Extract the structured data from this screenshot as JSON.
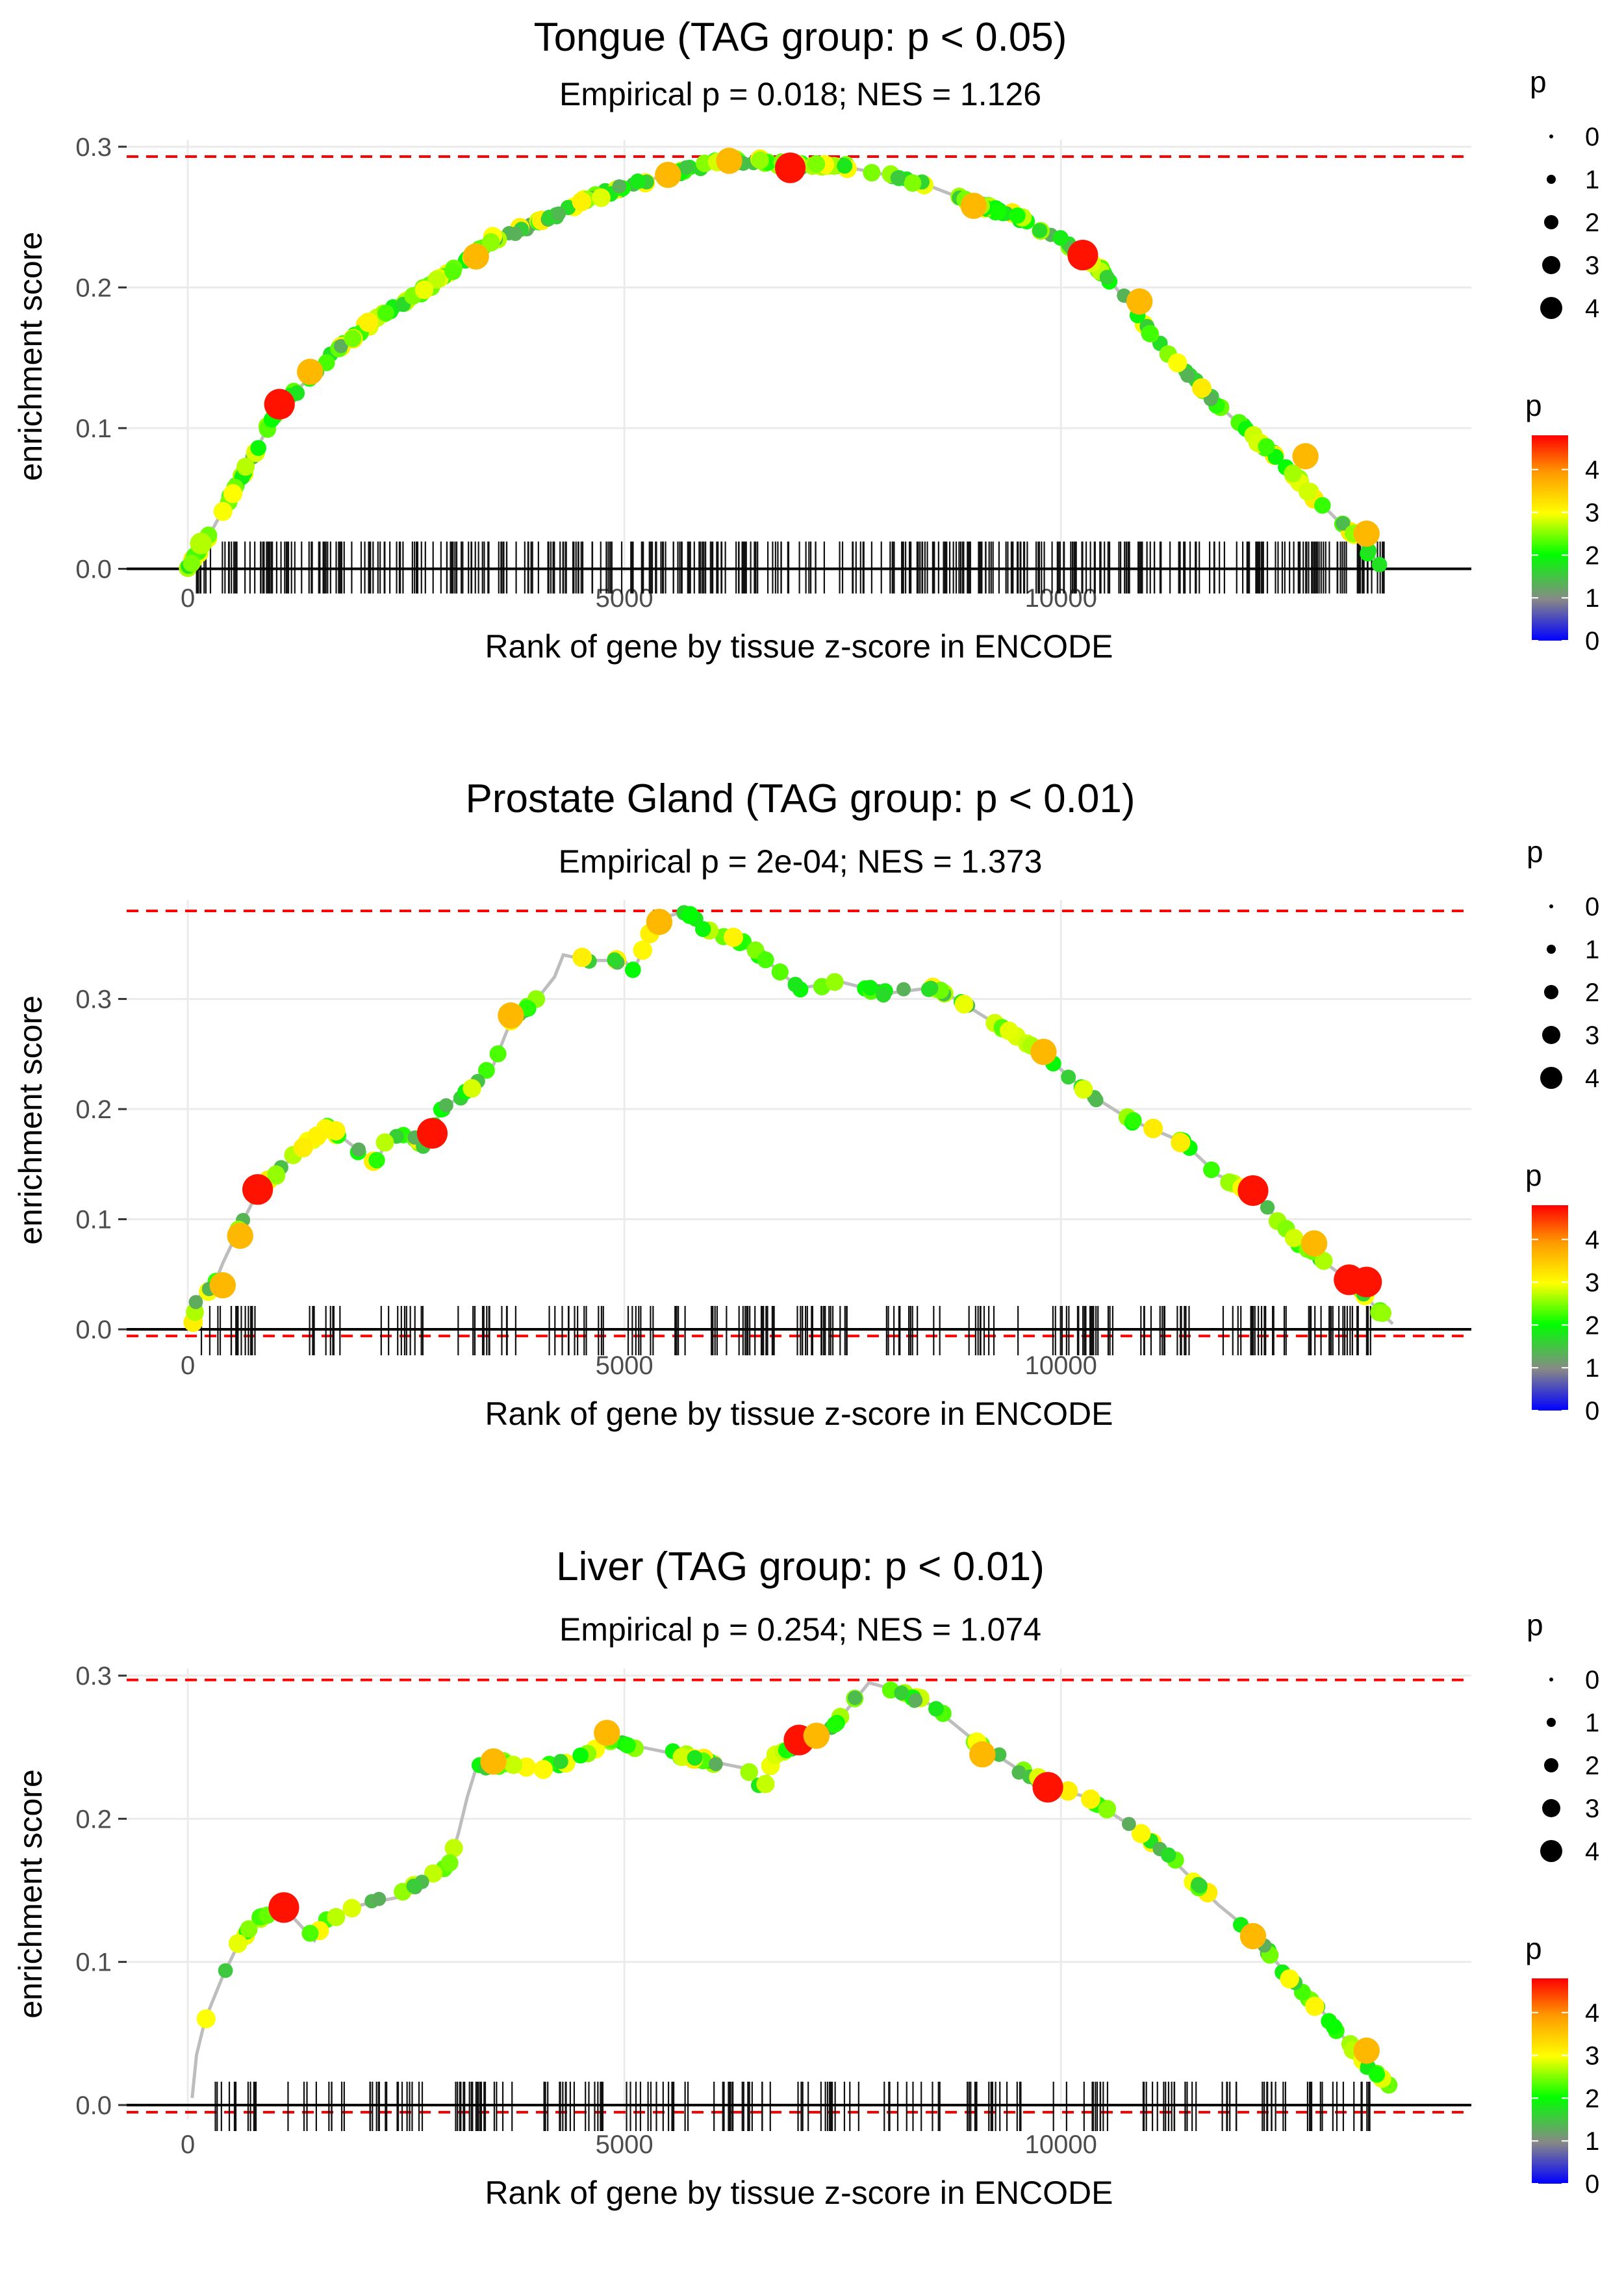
{
  "chart_data": [
    {
      "type": "line",
      "title": "Tongue (TAG group: p < 0.05)",
      "subtitle": "Empirical p = 0.018; NES = 1.126",
      "xlabel": "Rank of gene by tissue z-score in ENCODE",
      "ylabel": "enrichment score",
      "xlim": [
        -700,
        14700
      ],
      "ylim": [
        -0.003,
        0.305
      ],
      "xticks": [
        0,
        5000,
        10000
      ],
      "xtick_labels": [
        "0",
        "5000",
        "10000"
      ],
      "yticks": [
        0,
        0.1,
        0.2,
        0.3
      ],
      "ytick_labels": [
        "0.0",
        "0.1",
        "0.2",
        "0.3"
      ],
      "max_es": 0.293,
      "min_es": 0.0,
      "n_genes": 13700,
      "curve": [
        [
          0,
          0
        ],
        [
          300,
          0.03
        ],
        [
          700,
          0.075
        ],
        [
          1000,
          0.11
        ],
        [
          1300,
          0.13
        ],
        [
          1700,
          0.155
        ],
        [
          2100,
          0.175
        ],
        [
          2500,
          0.19
        ],
        [
          3000,
          0.21
        ],
        [
          3500,
          0.235
        ],
        [
          4000,
          0.245
        ],
        [
          4500,
          0.26
        ],
        [
          5000,
          0.272
        ],
        [
          5500,
          0.28
        ],
        [
          6000,
          0.288
        ],
        [
          6500,
          0.29
        ],
        [
          7000,
          0.287
        ],
        [
          7500,
          0.286
        ],
        [
          8000,
          0.28
        ],
        [
          8500,
          0.272
        ],
        [
          9000,
          0.26
        ],
        [
          9500,
          0.25
        ],
        [
          10000,
          0.235
        ],
        [
          10500,
          0.21
        ],
        [
          11000,
          0.17
        ],
        [
          11500,
          0.135
        ],
        [
          12000,
          0.105
        ],
        [
          12500,
          0.078
        ],
        [
          13000,
          0.045
        ],
        [
          13400,
          0.02
        ],
        [
          13700,
          0
        ]
      ],
      "highlights": [
        [
          150,
          0.018,
          2
        ],
        [
          1050,
          0.117,
          4
        ],
        [
          1400,
          0.14,
          3
        ],
        [
          3300,
          0.222,
          3
        ],
        [
          5500,
          0.28,
          3
        ],
        [
          6200,
          0.29,
          3
        ],
        [
          6900,
          0.285,
          4
        ],
        [
          9000,
          0.258,
          3
        ],
        [
          10250,
          0.223,
          4
        ],
        [
          10900,
          0.19,
          3
        ],
        [
          12800,
          0.08,
          3
        ],
        [
          13500,
          0.025,
          3
        ]
      ],
      "legend_size": {
        "title": "p",
        "labels": [
          "0",
          "1",
          "2",
          "3",
          "4"
        ]
      },
      "legend_color": {
        "title": "p",
        "labels": [
          "0",
          "1",
          "2",
          "3",
          "4"
        ]
      }
    },
    {
      "type": "line",
      "title": "Prostate Gland (TAG group: p < 0.01)",
      "subtitle": "Empirical p = 2e-04; NES = 1.373",
      "xlabel": "Rank of gene by tissue z-score in ENCODE",
      "ylabel": "enrichment score",
      "xlim": [
        -700,
        14700
      ],
      "ylim": [
        -0.01,
        0.39
      ],
      "xticks": [
        0,
        5000,
        10000
      ],
      "xtick_labels": [
        "0",
        "5000",
        "10000"
      ],
      "yticks": [
        0,
        0.1,
        0.2,
        0.3
      ],
      "ytick_labels": [
        "0.0",
        "0.1",
        "0.2",
        "0.3"
      ],
      "max_es": 0.38,
      "min_es": -0.006,
      "n_genes": 13800,
      "curve": [
        [
          50,
          0
        ],
        [
          100,
          0.028
        ],
        [
          300,
          0.04
        ],
        [
          400,
          0.06
        ],
        [
          550,
          0.085
        ],
        [
          800,
          0.125
        ],
        [
          1000,
          0.14
        ],
        [
          1300,
          0.165
        ],
        [
          1600,
          0.185
        ],
        [
          2150,
          0.15
        ],
        [
          2300,
          0.175
        ],
        [
          2600,
          0.175
        ],
        [
          2700,
          0.165
        ],
        [
          2800,
          0.18
        ],
        [
          2900,
          0.2
        ],
        [
          3200,
          0.215
        ],
        [
          3500,
          0.24
        ],
        [
          3700,
          0.28
        ],
        [
          4000,
          0.3
        ],
        [
          4200,
          0.32
        ],
        [
          4300,
          0.34
        ],
        [
          4600,
          0.335
        ],
        [
          5000,
          0.335
        ],
        [
          5100,
          0.325
        ],
        [
          5300,
          0.36
        ],
        [
          5500,
          0.375
        ],
        [
          5700,
          0.38
        ],
        [
          5900,
          0.365
        ],
        [
          6400,
          0.35
        ],
        [
          7000,
          0.31
        ],
        [
          7500,
          0.315
        ],
        [
          8000,
          0.305
        ],
        [
          8500,
          0.31
        ],
        [
          8800,
          0.3
        ],
        [
          9300,
          0.275
        ],
        [
          9800,
          0.25
        ],
        [
          10300,
          0.215
        ],
        [
          10800,
          0.19
        ],
        [
          11400,
          0.17
        ],
        [
          11800,
          0.14
        ],
        [
          12200,
          0.125
        ],
        [
          12700,
          0.08
        ],
        [
          13200,
          0.05
        ],
        [
          13400,
          0.04
        ],
        [
          13600,
          0.02
        ],
        [
          13800,
          0.005
        ]
      ],
      "highlights": [
        [
          400,
          0.04,
          3
        ],
        [
          600,
          0.085,
          3
        ],
        [
          800,
          0.127,
          4
        ],
        [
          2800,
          0.178,
          4
        ],
        [
          3700,
          0.285,
          3
        ],
        [
          5400,
          0.37,
          3
        ],
        [
          9800,
          0.252,
          3
        ],
        [
          12200,
          0.126,
          4
        ],
        [
          12900,
          0.078,
          3
        ],
        [
          13300,
          0.045,
          4
        ],
        [
          13500,
          0.043,
          4
        ]
      ],
      "legend_size": {
        "title": "p",
        "labels": [
          "0",
          "1",
          "2",
          "3",
          "4"
        ]
      },
      "legend_color": {
        "title": "p",
        "labels": [
          "0",
          "1",
          "2",
          "3",
          "4"
        ]
      }
    },
    {
      "type": "line",
      "title": "Liver (TAG group: p < 0.01)",
      "subtitle": "Empirical p = 0.254; NES = 1.074",
      "xlabel": "Rank of gene by tissue z-score in ENCODE",
      "ylabel": "enrichment score",
      "xlim": [
        -700,
        14700
      ],
      "ylim": [
        -0.01,
        0.305
      ],
      "xticks": [
        0,
        5000,
        10000
      ],
      "xtick_labels": [
        "0",
        "5000",
        "10000"
      ],
      "yticks": [
        0,
        0.1,
        0.2,
        0.3
      ],
      "ytick_labels": [
        "0.0",
        "0.1",
        "0.2",
        "0.3"
      ],
      "max_es": 0.297,
      "min_es": -0.005,
      "n_genes": 14000,
      "curve": [
        [
          50,
          0.005
        ],
        [
          100,
          0.035
        ],
        [
          200,
          0.06
        ],
        [
          400,
          0.09
        ],
        [
          600,
          0.115
        ],
        [
          800,
          0.13
        ],
        [
          1100,
          0.138
        ],
        [
          1450,
          0.115
        ],
        [
          1600,
          0.13
        ],
        [
          2000,
          0.14
        ],
        [
          2400,
          0.145
        ],
        [
          2800,
          0.16
        ],
        [
          3000,
          0.17
        ],
        [
          3100,
          0.19
        ],
        [
          3200,
          0.215
        ],
        [
          3300,
          0.235
        ],
        [
          3700,
          0.24
        ],
        [
          4000,
          0.235
        ],
        [
          4400,
          0.24
        ],
        [
          4800,
          0.255
        ],
        [
          5200,
          0.25
        ],
        [
          5600,
          0.245
        ],
        [
          6000,
          0.24
        ],
        [
          6400,
          0.235
        ],
        [
          6600,
          0.22
        ],
        [
          6700,
          0.245
        ],
        [
          7000,
          0.25
        ],
        [
          7400,
          0.265
        ],
        [
          7800,
          0.295
        ],
        [
          8100,
          0.29
        ],
        [
          8500,
          0.28
        ],
        [
          9000,
          0.255
        ],
        [
          9500,
          0.235
        ],
        [
          9900,
          0.222
        ],
        [
          10300,
          0.215
        ],
        [
          10800,
          0.195
        ],
        [
          11300,
          0.17
        ],
        [
          11800,
          0.14
        ],
        [
          12200,
          0.12
        ],
        [
          12600,
          0.09
        ],
        [
          13000,
          0.065
        ],
        [
          13400,
          0.035
        ],
        [
          13800,
          0.01
        ]
      ],
      "highlights": [
        [
          1100,
          0.138,
          4
        ],
        [
          3500,
          0.24,
          3
        ],
        [
          4800,
          0.26,
          3
        ],
        [
          7000,
          0.255,
          4
        ],
        [
          7200,
          0.258,
          3
        ],
        [
          9100,
          0.245,
          3
        ],
        [
          9850,
          0.222,
          4
        ],
        [
          12200,
          0.118,
          3
        ],
        [
          13500,
          0.038,
          3
        ]
      ],
      "legend_size": {
        "title": "p",
        "labels": [
          "0",
          "1",
          "2",
          "3",
          "4"
        ]
      },
      "legend_color": {
        "title": "p",
        "labels": [
          "0",
          "1",
          "2",
          "3",
          "4"
        ]
      }
    }
  ]
}
